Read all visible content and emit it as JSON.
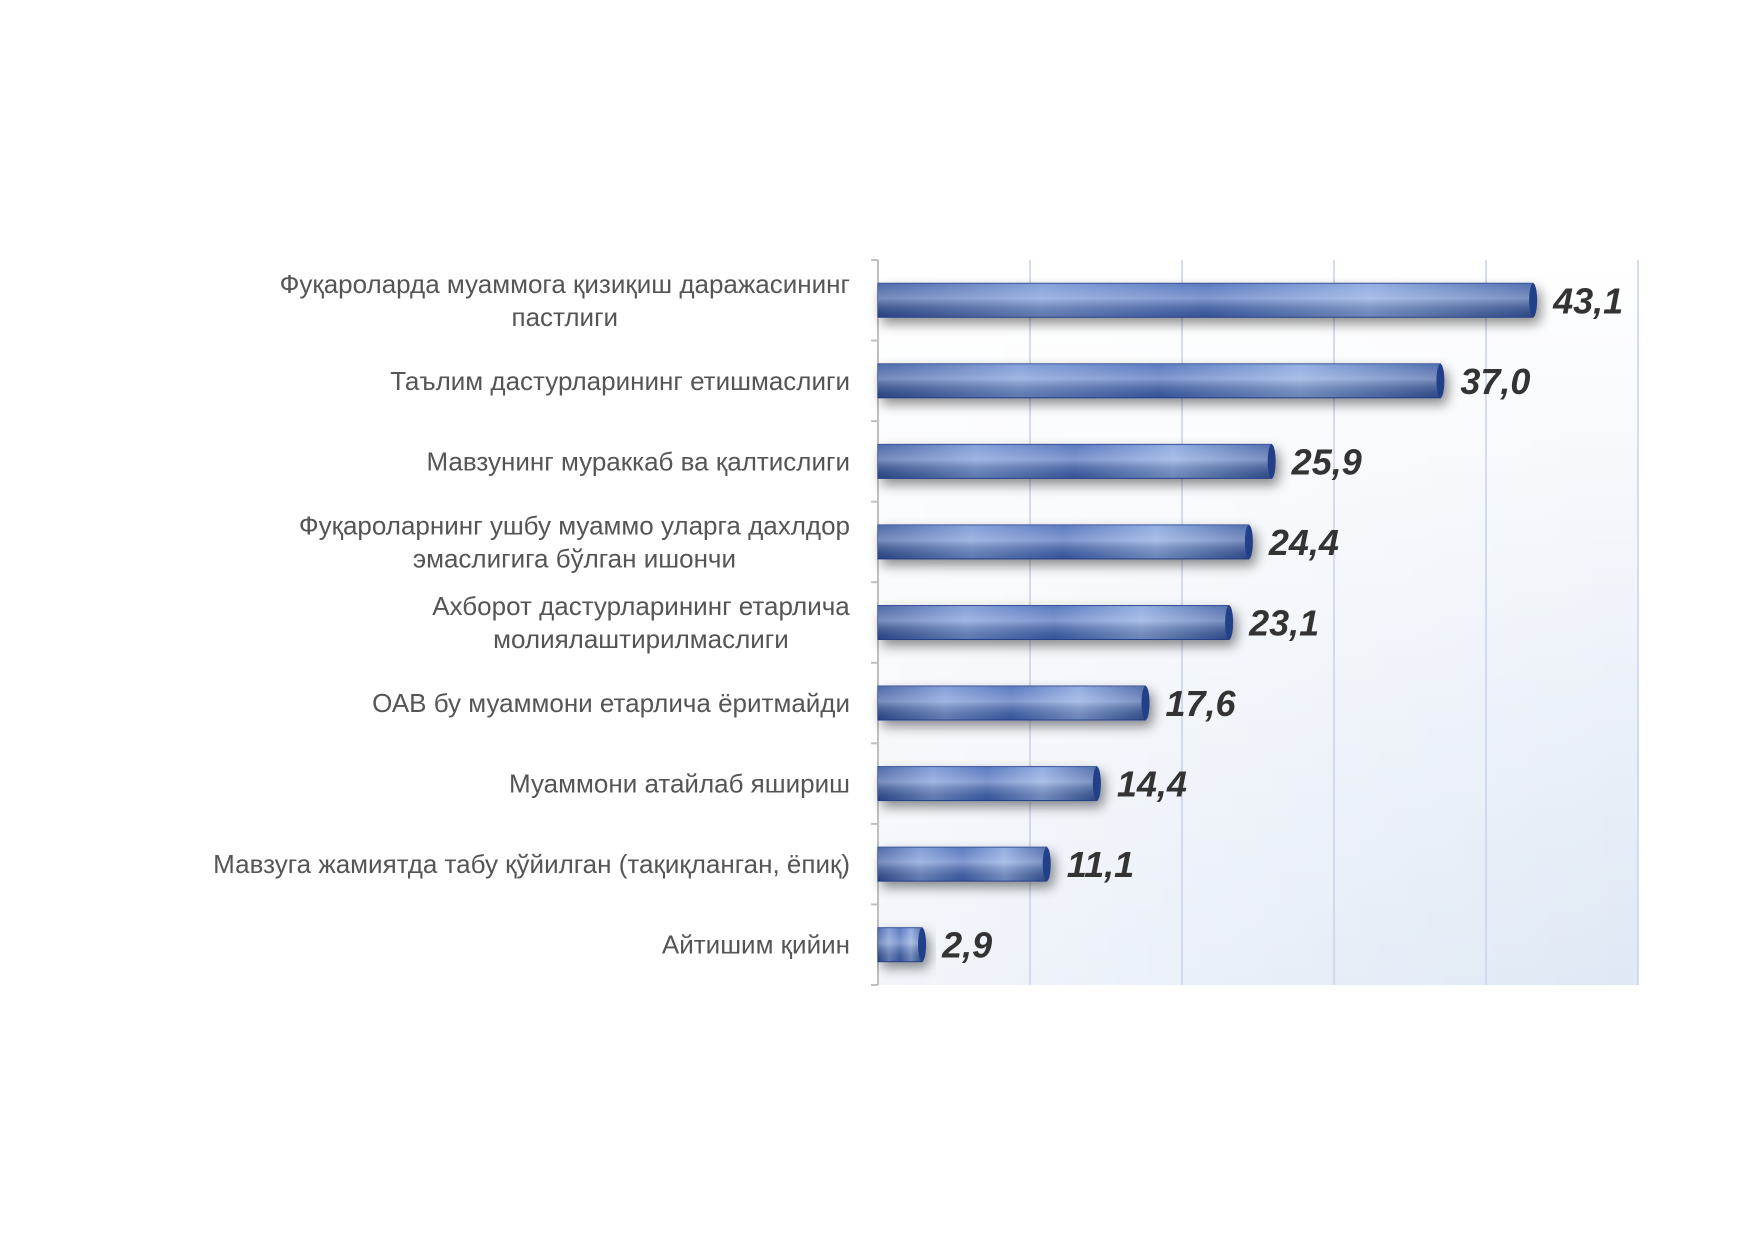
{
  "chart_data": {
    "type": "bar",
    "orientation": "horizontal",
    "categories": [
      [
        "Фуқароларда муаммога қизиқиш даражасининг",
        "пастлиги"
      ],
      [
        "Таълим дастурларининг етишмаслиги"
      ],
      [
        "Мавзунинг мураккаб ва қалтислиги"
      ],
      [
        "Фуқароларнинг ушбу муаммо уларга дахлдор",
        "эмаслигига бўлган ишончи"
      ],
      [
        "Ахборот дастурларининг етарлича",
        "молиялаштирилмаслиги"
      ],
      [
        "ОАВ бу муаммони етарлича ёритмайди"
      ],
      [
        "Муаммони атайлаб яшириш"
      ],
      [
        "Мавзуга жамиятда табу қўйилган (тақиқланган, ёпиқ)"
      ],
      [
        "Айтишим қийин"
      ]
    ],
    "values": [
      43.1,
      37.0,
      25.9,
      24.4,
      23.1,
      17.6,
      14.4,
      11.1,
      2.9
    ],
    "value_labels": [
      "43,1",
      "37,0",
      "25,9",
      "24,4",
      "23,1",
      "17,6",
      "14,4",
      "11,1",
      "2,9"
    ],
    "xlim": [
      0,
      50
    ],
    "grid": true,
    "legend": "none",
    "title": "",
    "xlabel": "",
    "ylabel": "",
    "colors": {
      "bar_dark": "#2f4f9a",
      "bar_light": "#7f9fdc",
      "plot_bg_top": "#ffffff",
      "plot_bg_bottom": "#dfe8f5",
      "grid": "#c8d2ea",
      "axis": "#bfbfbf"
    }
  }
}
